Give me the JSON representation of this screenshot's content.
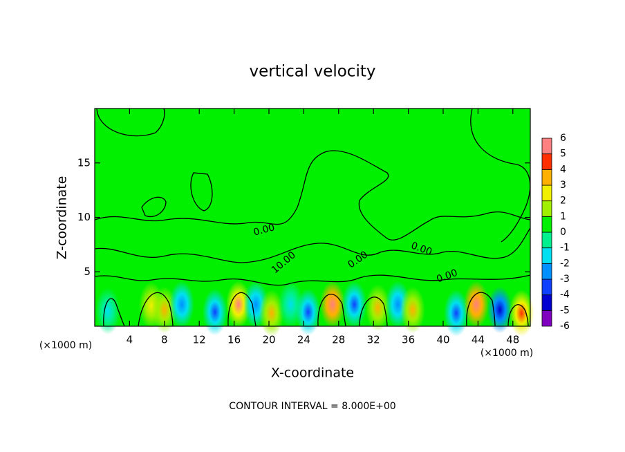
{
  "chart_data": {
    "type": "contour",
    "title": "vertical velocity",
    "xlabel": "X-coordinate",
    "ylabel": "Z-coordinate",
    "x_unit": "(×1000 m)",
    "y_unit": "(×1000 m)",
    "footer": "CONTOUR INTERVAL = 8.000E+00",
    "xlim": [
      0,
      50
    ],
    "ylim": [
      0,
      20
    ],
    "xticks": [
      4,
      8,
      12,
      16,
      20,
      24,
      28,
      32,
      36,
      40,
      44,
      48
    ],
    "yticks": [
      5,
      10,
      15
    ],
    "contour_labels": [
      "0.00",
      "10.00",
      "0.00",
      "0.00",
      "0.00"
    ],
    "colorbar": {
      "levels": [
        -6,
        -5,
        -4,
        -3,
        -2,
        -1,
        0,
        1,
        2,
        3,
        4,
        5,
        6
      ],
      "colors": [
        "#8000c0",
        "#0000d0",
        "#1040ff",
        "#0090ff",
        "#00e0f0",
        "#00f090",
        "#00f000",
        "#a0f000",
        "#f0f000",
        "#ffb000",
        "#ff3000",
        "#ff8080"
      ]
    },
    "extrema": {
      "x": [
        1.5,
        6.5,
        8,
        10,
        13.8,
        16.5,
        18.5,
        20.3,
        22.5,
        24.5,
        27.3,
        29.8,
        32.5,
        34.8,
        36.5,
        41.5,
        43.8,
        46.5,
        49
      ],
      "z": [
        1.4,
        1.9,
        1.5,
        2,
        1.3,
        2,
        2,
        1.2,
        2,
        1.3,
        2,
        2,
        1.7,
        2,
        1.5,
        1.2,
        2,
        1.5,
        1.2
      ],
      "values": [
        -2,
        2,
        3,
        -3,
        -4,
        5,
        -3,
        3,
        -2,
        -4,
        6,
        -4,
        3,
        -3,
        3,
        -4,
        6,
        -5,
        4
      ]
    }
  }
}
